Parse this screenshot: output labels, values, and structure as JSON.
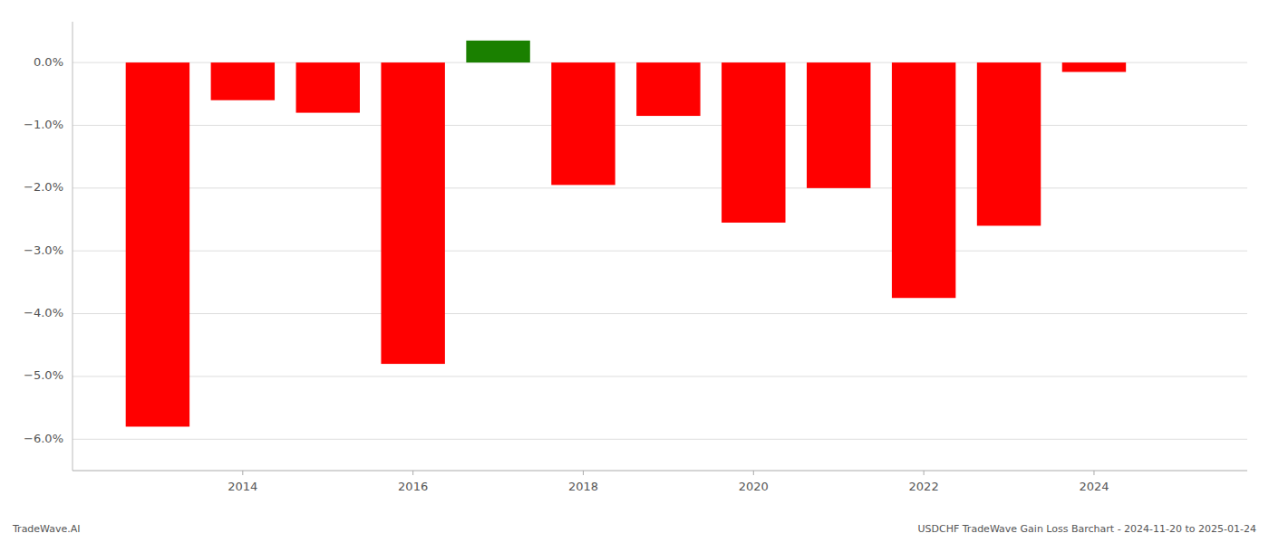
{
  "chart_data": {
    "type": "bar",
    "title": "USDCHF TradeWave Gain Loss Barchart - 2024-11-20 to 2025-01-24",
    "annotations": [
      "TradeWave.AI"
    ],
    "x": [
      2013,
      2014,
      2015,
      2016,
      2017,
      2018,
      2019,
      2020,
      2021,
      2022,
      2023,
      2024
    ],
    "values": [
      -5.8,
      -0.6,
      -0.8,
      -4.8,
      0.35,
      -1.95,
      -0.85,
      -2.55,
      -2.0,
      -3.75,
      -2.6,
      -0.15
    ],
    "colors": [
      "#FF0000",
      "#FF0000",
      "#FF0000",
      "#FF0000",
      "#1a8000",
      "#FF0000",
      "#FF0000",
      "#FF0000",
      "#FF0000",
      "#FF0000",
      "#FF0000",
      "#FF0000"
    ],
    "xlim": [
      2012.0,
      2025.8
    ],
    "xticks": [
      2014,
      2016,
      2018,
      2020,
      2022,
      2024
    ],
    "ylim": [
      -6.5,
      0.65
    ],
    "yticks": [
      {
        "value": 0.0,
        "label": "0.0%"
      },
      {
        "value": -1.0,
        "label": "−1.0%"
      },
      {
        "value": -2.0,
        "label": "−2.0%"
      },
      {
        "value": -3.0,
        "label": "−3.0%"
      },
      {
        "value": -4.0,
        "label": "−4.0%"
      },
      {
        "value": -5.0,
        "label": "−5.0%"
      },
      {
        "value": -6.0,
        "label": "−6.0%"
      }
    ],
    "grid": true
  }
}
